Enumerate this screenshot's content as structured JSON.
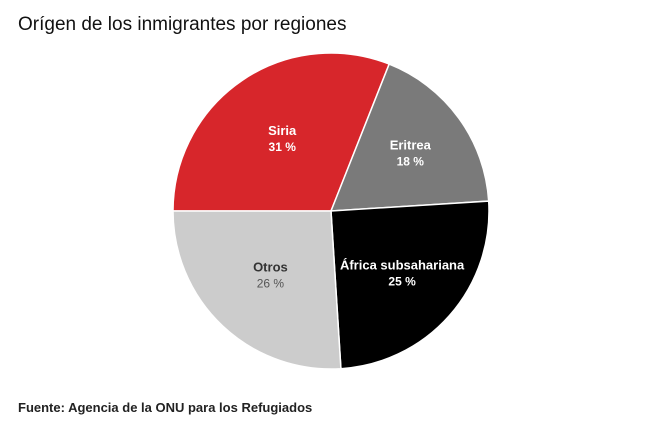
{
  "title": "Orígen de los inmigrantes por regiones",
  "source": "Fuente: Agencia de la ONU para los Refugiados",
  "chart_data": {
    "type": "pie",
    "title": "Orígen de los inmigrantes por regiones",
    "unit": "%",
    "slices": [
      {
        "label": "Siria",
        "value": 31,
        "display": "31 %",
        "color": "#d7262b",
        "text_color": "#ffffff",
        "value_color": "#ffffff",
        "value_bold": true
      },
      {
        "label": "Eritrea",
        "value": 18,
        "display": "18 %",
        "color": "#7a7a7a",
        "text_color": "#ffffff",
        "value_color": "#ffffff",
        "value_bold": true
      },
      {
        "label": "África subsahariana",
        "value": 25,
        "display": "25 %",
        "color": "#000000",
        "text_color": "#ffffff",
        "value_color": "#ffffff",
        "value_bold": true
      },
      {
        "label": "Otros",
        "value": 26,
        "display": "26 %",
        "color": "#cccccc",
        "text_color": "#333333",
        "value_color": "#555555",
        "value_bold": false
      }
    ],
    "start_angle_deg": 270,
    "direction": "counterclockwise-from-left",
    "legend": "none"
  }
}
